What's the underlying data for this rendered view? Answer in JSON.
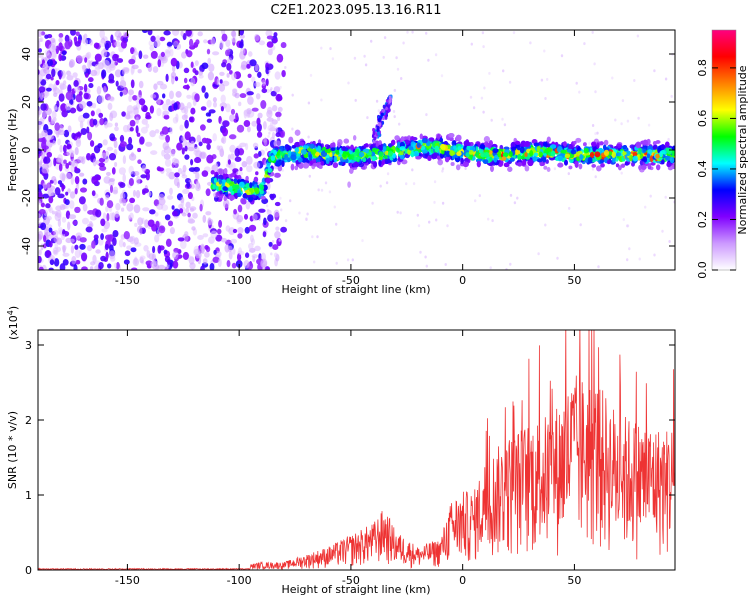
{
  "figure": {
    "title": "C2E1.2023.095.13.16.R11"
  },
  "chart_data": [
    {
      "type": "heatmap",
      "xlabel": "Height of straight line (km)",
      "ylabel": "Frequency (Hz)",
      "xlim": [
        -190,
        95
      ],
      "ylim": [
        -50,
        50
      ],
      "x_ticks": [
        -150,
        -100,
        -50,
        0,
        50
      ],
      "y_ticks": [
        -40,
        -20,
        0,
        20,
        40
      ],
      "colorbar": {
        "label": "Normalized spectral amplitude",
        "range": [
          0.0,
          0.95
        ],
        "ticks": [
          0.0,
          0.2,
          0.4,
          0.6,
          0.8
        ],
        "stops": [
          "#ffffff",
          "#cc99ff",
          "#8000ff",
          "#0000ff",
          "#00ffff",
          "#00ff00",
          "#ffff00",
          "#ff8000",
          "#ff0000",
          "#ff0080"
        ]
      },
      "ridge": {
        "x": [
          -110,
          -100,
          -95,
          -90,
          -85,
          -80,
          -70,
          -60,
          -50,
          -40,
          -30,
          -20,
          -10,
          0,
          10,
          20,
          30,
          40,
          50,
          60,
          70,
          80,
          90,
          95
        ],
        "y": [
          -14,
          -16,
          -17,
          -17,
          -3,
          -2,
          -1,
          -2,
          -3,
          -2,
          -1,
          1,
          1,
          -1,
          -2,
          -2,
          -1,
          -1,
          -2,
          -2,
          -2,
          -2,
          -2,
          -2
        ]
      },
      "secondary_feature": {
        "x": [
          -40,
          -35,
          -32
        ],
        "y": [
          5,
          15,
          22
        ]
      }
    },
    {
      "type": "line",
      "xlabel": "Height of straight line (km)",
      "ylabel": "SNR (10 * v/v)",
      "y_scale_label": "(x10",
      "y_scale_exp": "4",
      "y_scale_close": ")",
      "xlim": [
        -190,
        95
      ],
      "ylim": [
        0,
        3.2
      ],
      "x_ticks": [
        -150,
        -100,
        -50,
        0,
        50
      ],
      "y_ticks": [
        0,
        1,
        2,
        3
      ],
      "series": [
        {
          "color": "#ee3333",
          "envelope": {
            "x": [
              -190,
              -120,
              -100,
              -90,
              -80,
              -70,
              -60,
              -50,
              -40,
              -35,
              -30,
              -20,
              -10,
              -5,
              0,
              5,
              10,
              20,
              30,
              40,
              50,
              60,
              70,
              80,
              90,
              95
            ],
            "y": [
              0.02,
              0.03,
              0.05,
              0.1,
              0.1,
              0.2,
              0.3,
              0.45,
              0.6,
              0.8,
              0.5,
              0.3,
              0.4,
              0.9,
              1.0,
              1.0,
              1.4,
              1.7,
              1.9,
              2.0,
              2.5,
              2.4,
              2.0,
              1.9,
              1.8,
              1.9
            ]
          }
        }
      ]
    }
  ]
}
